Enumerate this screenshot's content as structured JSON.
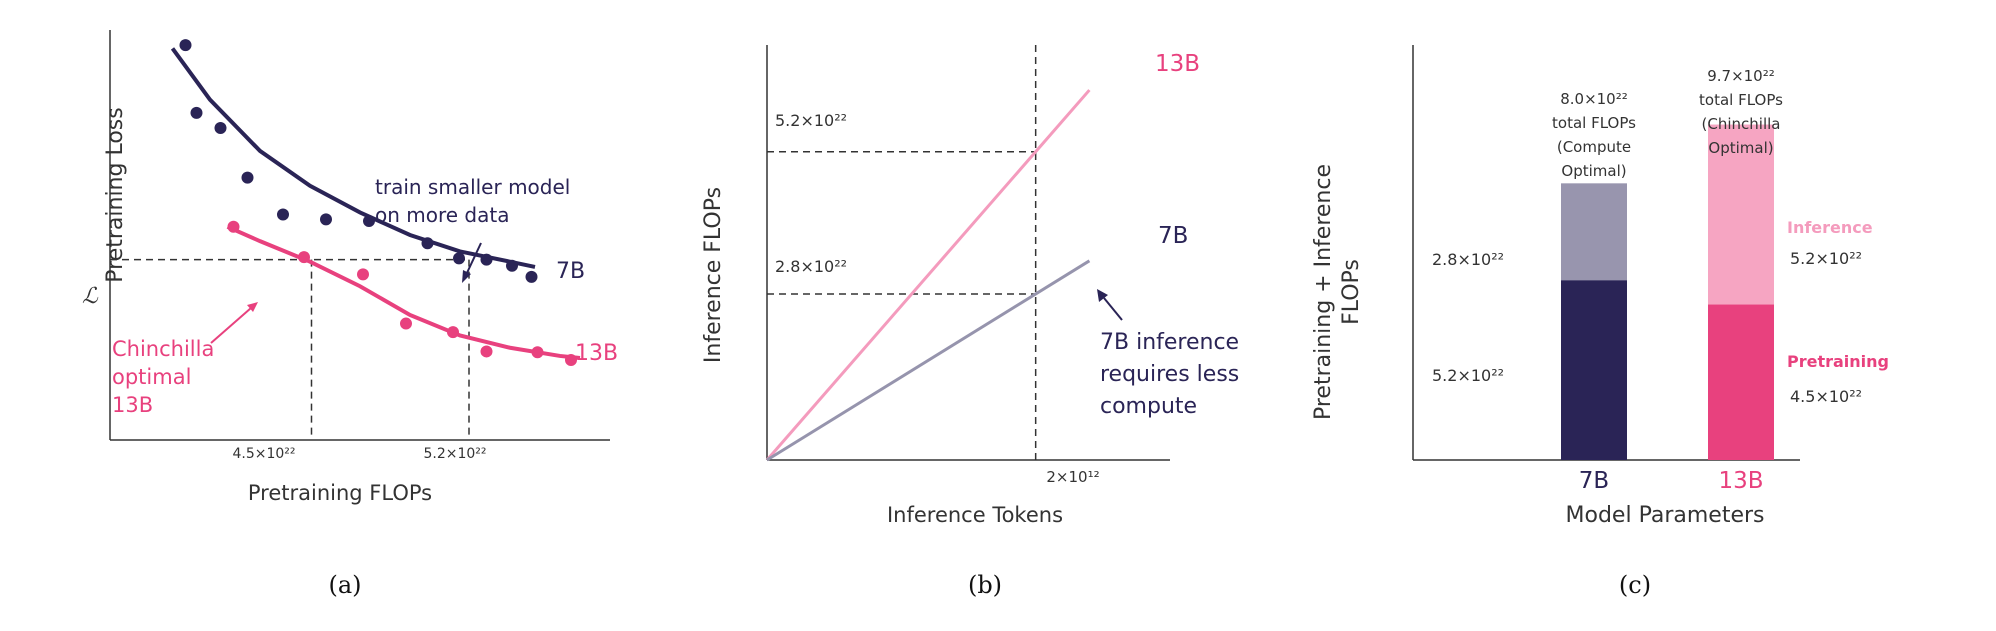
{
  "colors": {
    "navy": "#2a2456",
    "pink": "#e8417e",
    "light_pink": "#f49bbd",
    "grey_purple": "#9694ad",
    "bar_pink_light": "#f6a5c2",
    "bar_grey": "#9895ae"
  },
  "chart_data": [
    {
      "panel": "a",
      "type": "scatter",
      "caption": "(a)",
      "xlabel": "Pretraining FLOPs",
      "ylabel": "Pretraining Loss",
      "xlim": [
        0,
        100
      ],
      "ylim": [
        0,
        100
      ],
      "ref_y_label": "ℒ",
      "ref_y": 44,
      "ref_x": [
        {
          "label": "4.5×10²²",
          "x": 40.3
        },
        {
          "label": "5.2×10²²",
          "x": 71.8
        }
      ],
      "series": [
        {
          "name": "7B",
          "color": "navy",
          "points": [
            [
              15.1,
              96.3
            ],
            [
              17.3,
              79.8
            ],
            [
              22.1,
              76.1
            ],
            [
              27.5,
              64.0
            ],
            [
              34.6,
              55.0
            ],
            [
              43.2,
              53.8
            ],
            [
              51.8,
              53.4
            ],
            [
              63.5,
              48.0
            ],
            [
              69.8,
              44.3
            ],
            [
              75.3,
              44.0
            ],
            [
              80.4,
              42.5
            ],
            [
              84.3,
              39.8
            ]
          ],
          "fit": [
            [
              12.5,
              95.5
            ],
            [
              20,
              83
            ],
            [
              30,
              70.5
            ],
            [
              40,
              62
            ],
            [
              50,
              55.5
            ],
            [
              60,
              50
            ],
            [
              70,
              46
            ],
            [
              80,
              43.5
            ],
            [
              85,
              42.2
            ]
          ]
        },
        {
          "name": "13B",
          "color": "pink",
          "points": [
            [
              24.7,
              52.0
            ],
            [
              38.8,
              44.6
            ],
            [
              50.6,
              40.4
            ],
            [
              59.2,
              28.4
            ],
            [
              68.6,
              26.3
            ],
            [
              75.3,
              21.6
            ],
            [
              85.5,
              21.4
            ],
            [
              92.2,
              19.5
            ]
          ],
          "fit": [
            [
              23.5,
              52
            ],
            [
              30,
              48.5
            ],
            [
              40,
              43.5
            ],
            [
              50,
              37.5
            ],
            [
              60,
              30.5
            ],
            [
              70,
              25.5
            ],
            [
              80,
              22.5
            ],
            [
              90,
              20.5
            ],
            [
              94,
              20
            ]
          ]
        }
      ],
      "annotations": [
        {
          "text": "train smaller model",
          "line": 1
        },
        {
          "text": "on more data",
          "line": 2
        },
        {
          "text": "Chinchilla",
          "line": 1
        },
        {
          "text": "optimal",
          "line": 2
        },
        {
          "text": "13B",
          "line": 3
        }
      ]
    },
    {
      "panel": "b",
      "type": "line",
      "caption": "(b)",
      "xlabel": "Inference Tokens",
      "ylabel": "Inference FLOPs",
      "xlim": [
        0,
        3
      ],
      "ylim": [
        0,
        7
      ],
      "xtick_label": "2×10¹²",
      "xtick": 2,
      "ref_lines": [
        {
          "label": "5.2×10²²",
          "y": 5.2
        },
        {
          "label": "2.8×10²²",
          "y": 2.8
        }
      ],
      "series": [
        {
          "name": "13B",
          "color": "light_pink",
          "x": [
            0,
            2.4
          ],
          "y": [
            0,
            6.24
          ]
        },
        {
          "name": "7B",
          "color": "grey_purple",
          "x": [
            0,
            2.4
          ],
          "y": [
            0,
            3.36
          ]
        }
      ],
      "annotation": [
        "7B inference",
        "requires less",
        "compute"
      ]
    },
    {
      "panel": "c",
      "type": "bar",
      "caption": "(c)",
      "xlabel": "Model Parameters",
      "ylabel": [
        "Pretraining + Inference",
        "FLOPs"
      ],
      "ylim": [
        0,
        12
      ],
      "categories": [
        "7B",
        "13B"
      ],
      "series": [
        {
          "name": "Pretraining",
          "values": [
            5.2,
            4.5
          ],
          "labels": [
            "5.2×10²²",
            "4.5×10²²"
          ]
        },
        {
          "name": "Inference",
          "values": [
            2.8,
            5.2
          ],
          "labels": [
            "2.8×10²²",
            "5.2×10²²"
          ]
        }
      ],
      "totals": [
        [
          "8.0×10²²",
          "total FLOPs",
          "(Compute",
          "Optimal)"
        ],
        [
          "9.7×10²²",
          "total FLOPs",
          "(Chinchilla",
          "Optimal)"
        ]
      ],
      "legend": [
        "Inference",
        "Pretraining"
      ]
    }
  ]
}
